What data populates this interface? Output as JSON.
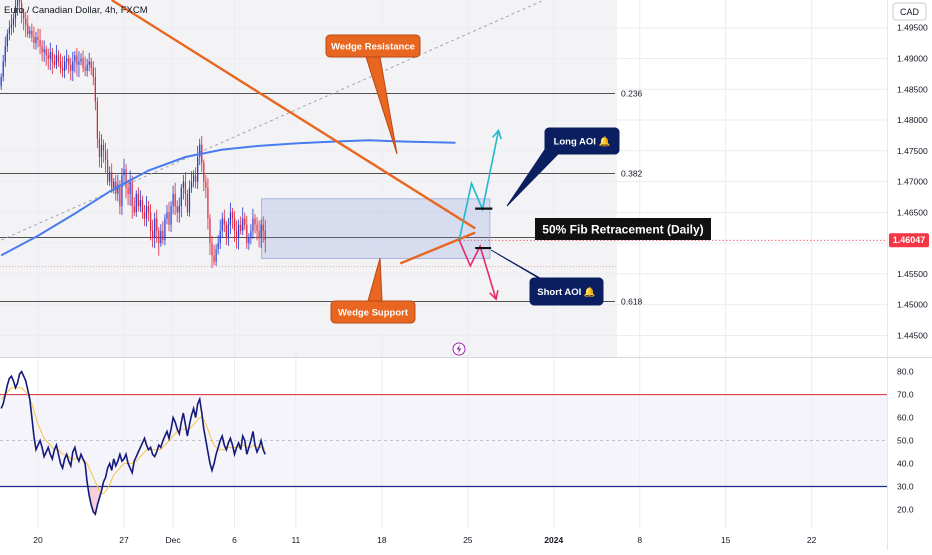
{
  "chart_data": {
    "type": "candlestick",
    "title": "Euro / Canadian Dollar, 4h, FXCM",
    "currency_label": "CAD",
    "price_axis": {
      "range": [
        1.4415,
        1.4995
      ],
      "ticks": [
        "1.49500",
        "1.49000",
        "1.48500",
        "1.48000",
        "1.47500",
        "1.47000",
        "1.46500",
        "1.46000",
        "1.45500",
        "1.45000",
        "1.44500"
      ],
      "tick_values": [
        1.495,
        1.49,
        1.485,
        1.48,
        1.475,
        1.47,
        1.465,
        1.46,
        1.455,
        1.45,
        1.445
      ],
      "current_price_label": "1.46047",
      "current_price": 1.46047
    },
    "time_axis": {
      "ticks": [
        {
          "label": "20",
          "t": 0
        },
        {
          "label": "27",
          "t": 7
        },
        {
          "label": "Dec",
          "t": 11
        },
        {
          "label": "6",
          "t": 16
        },
        {
          "label": "11",
          "t": 21
        },
        {
          "label": "18",
          "t": 28
        },
        {
          "label": "25",
          "t": 35
        },
        {
          "label": "2024",
          "t": 42
        },
        {
          "label": "8",
          "t": 49
        },
        {
          "label": "15",
          "t": 56
        },
        {
          "label": "22",
          "t": 63
        }
      ]
    },
    "fib_levels": [
      {
        "label": "0.236",
        "price": 1.4843
      },
      {
        "label": "0.382",
        "price": 1.4713
      },
      {
        "label": "0.618",
        "price": 1.4505
      }
    ],
    "fib_50_price": 1.4609,
    "annotations": {
      "fib_label": "50% Fib Retracement (Daily)",
      "wedge_resistance": "Wedge Resistance",
      "wedge_support": "Wedge Support",
      "long_aoi": "Long AOI 🔔",
      "short_aoi": "Short AOI 🔔"
    },
    "wedge_resistance_line": [
      {
        "t": 6,
        "p": 1.4995
      },
      {
        "t": 35.6,
        "p": 1.4624
      }
    ],
    "wedge_support_line": [
      {
        "t": 29.5,
        "p": 1.4567
      },
      {
        "t": 35.6,
        "p": 1.4617
      }
    ],
    "consolidation_zone": {
      "t0": 18.2,
      "t1": 36.8,
      "p_low": 1.4575,
      "p_high": 1.4672
    },
    "long_scenario": [
      {
        "t": 34.3,
        "p": 1.4605
      },
      {
        "t": 35.3,
        "p": 1.4697
      },
      {
        "t": 36.2,
        "p": 1.4655
      },
      {
        "t": 37.5,
        "p": 1.4783
      }
    ],
    "short_scenario": [
      {
        "t": 34.3,
        "p": 1.4605
      },
      {
        "t": 35.2,
        "p": 1.4563
      },
      {
        "t": 36.0,
        "p": 1.4595
      },
      {
        "t": 37.3,
        "p": 1.4509
      }
    ],
    "long_aoi_level": {
      "t0": 35.6,
      "t1": 37.0,
      "p": 1.4656
    },
    "short_aoi_level": {
      "t0": 35.6,
      "t1": 36.9,
      "p": 1.4592
    },
    "moving_average": [
      {
        "t": -3,
        "p": 1.458
      },
      {
        "t": 0,
        "p": 1.4612
      },
      {
        "t": 3,
        "p": 1.4648
      },
      {
        "t": 6,
        "p": 1.4686
      },
      {
        "t": 9,
        "p": 1.4718
      },
      {
        "t": 12,
        "p": 1.474
      },
      {
        "t": 15,
        "p": 1.4752
      },
      {
        "t": 18,
        "p": 1.4758
      },
      {
        "t": 21,
        "p": 1.4762
      },
      {
        "t": 24,
        "p": 1.4765
      },
      {
        "t": 27,
        "p": 1.4767
      },
      {
        "t": 30,
        "p": 1.4765
      },
      {
        "t": 34,
        "p": 1.4763
      }
    ],
    "trend_channel_line": [
      {
        "t": -3,
        "p": 1.4605
      },
      {
        "t": 41,
        "p": 1.4993
      }
    ],
    "candles_start_t": -3,
    "candles_step_t": 0.1667,
    "close_path": [
      1.487,
      1.4895,
      1.492,
      1.494,
      1.495,
      1.4955,
      1.4965,
      1.4985,
      1.4995,
      1.499,
      1.4975,
      1.4965,
      1.4955,
      1.494,
      1.4945,
      1.4935,
      1.4925,
      1.4935,
      1.493,
      1.492,
      1.491,
      1.4915,
      1.4905,
      1.49,
      1.491,
      1.4895,
      1.489,
      1.4905,
      1.4895,
      1.4885,
      1.488,
      1.4895,
      1.49,
      1.489,
      1.488,
      1.4895,
      1.4905,
      1.489,
      1.4895,
      1.49,
      1.4885,
      1.488,
      1.489,
      1.4895,
      1.4885,
      1.487,
      1.483,
      1.477,
      1.474,
      1.476,
      1.475,
      1.4735,
      1.47,
      1.4715,
      1.469,
      1.47,
      1.468,
      1.4695,
      1.466,
      1.471,
      1.472,
      1.469,
      1.468,
      1.47,
      1.466,
      1.465,
      1.468,
      1.466,
      1.467,
      1.465,
      1.464,
      1.466,
      1.465,
      1.462,
      1.461,
      1.464,
      1.462,
      1.46,
      1.462,
      1.4605,
      1.464,
      1.465,
      1.463,
      1.466,
      1.468,
      1.466,
      1.465,
      1.466,
      1.469,
      1.47,
      1.468,
      1.465,
      1.469,
      1.47,
      1.471,
      1.47,
      1.474,
      1.476,
      1.473,
      1.47,
      1.469,
      1.464,
      1.46,
      1.458,
      1.457,
      1.459,
      1.46,
      1.462,
      1.464,
      1.463,
      1.461,
      1.463,
      1.465,
      1.464,
      1.462,
      1.461,
      1.463,
      1.462,
      1.464,
      1.463,
      1.46,
      1.461,
      1.462,
      1.464,
      1.463,
      1.462,
      1.461,
      1.463,
      1.462,
      1.4605
    ],
    "rsi": {
      "range": [
        15,
        82
      ],
      "ticks": [
        "80.0",
        "70.0",
        "60.0",
        "50.0",
        "40.0",
        "30.0",
        "20.0"
      ],
      "tick_values": [
        80,
        70,
        60,
        50,
        40,
        30,
        20
      ],
      "overbought": 70,
      "oversold": 30,
      "midline": 50,
      "values": [
        64,
        66,
        70,
        74,
        77,
        78,
        76,
        73,
        75,
        79,
        80,
        78,
        76,
        72,
        68,
        60,
        52,
        46,
        48,
        50,
        47,
        43,
        45,
        47,
        44,
        42,
        46,
        48,
        44,
        40,
        38,
        42,
        44,
        41,
        39,
        45,
        47,
        43,
        41,
        44,
        42,
        40,
        32,
        26,
        22,
        19,
        18,
        22,
        25,
        28,
        32,
        34,
        38,
        40,
        37,
        42,
        39,
        41,
        44,
        41,
        42,
        44,
        40,
        38,
        36,
        41,
        43,
        45,
        47,
        49,
        51,
        48,
        46,
        47,
        44,
        43,
        45,
        48,
        47,
        50,
        52,
        54,
        51,
        55,
        60,
        58,
        55,
        53,
        58,
        62,
        57,
        52,
        57,
        61,
        64,
        60,
        66,
        68,
        62,
        55,
        50,
        45,
        40,
        37,
        40,
        44,
        47,
        50,
        52,
        48,
        46,
        49,
        51,
        48,
        44,
        47,
        49,
        46,
        52,
        50,
        44,
        47,
        50,
        54,
        48,
        45,
        47,
        50,
        46,
        44
      ],
      "ma_values": [
        68,
        69,
        70,
        71,
        72,
        73,
        73,
        73,
        73,
        73,
        73,
        72,
        71,
        70,
        68,
        66,
        63,
        60,
        57,
        55,
        53,
        51,
        50,
        49,
        48,
        47,
        46,
        46,
        46,
        45,
        44,
        44,
        43,
        43,
        42,
        42,
        42,
        42,
        42,
        42,
        42,
        41,
        40,
        38,
        36,
        34,
        32,
        30,
        28,
        27,
        27,
        28,
        29,
        31,
        33,
        35,
        36,
        37,
        38,
        39,
        40,
        40,
        40,
        40,
        40,
        41,
        41,
        42,
        43,
        44,
        45,
        46,
        46,
        46,
        46,
        46,
        46,
        46,
        46,
        47,
        48,
        49,
        50,
        51,
        52,
        53,
        54,
        54,
        55,
        55,
        55,
        55,
        55,
        56,
        57,
        58,
        59,
        60,
        60,
        59,
        57,
        55,
        52,
        50,
        48,
        47,
        46,
        46,
        46,
        46,
        46,
        47,
        47,
        47,
        47,
        47,
        47,
        47,
        48,
        48,
        47,
        47,
        47,
        48,
        48,
        47,
        47,
        47,
        47,
        46
      ]
    }
  }
}
